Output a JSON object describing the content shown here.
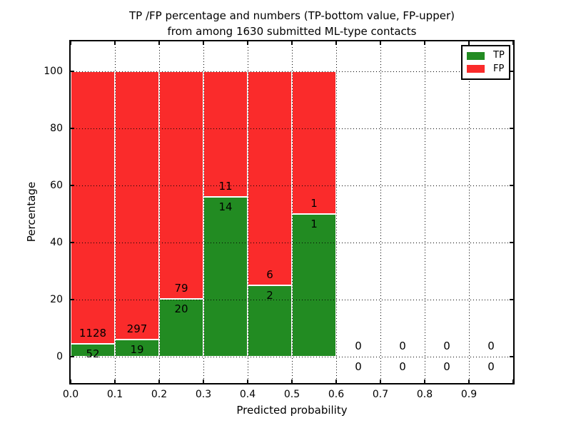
{
  "figure": {
    "title_line1": "TP /FP percentage and numbers (TP-bottom value, FP-upper)",
    "title_line2": "from among 1630 submitted ML-type contacts",
    "background": "#ffffff",
    "spine_color": "#000000"
  },
  "chart_data": {
    "type": "bar",
    "stacked": true,
    "title": "TP /FP percentage and numbers (TP-bottom value, FP-upper)\nfrom among 1630 submitted ML-type contacts",
    "xlabel": "Predicted probability",
    "ylabel": "Percentage",
    "xlim": [
      0.0,
      1.0
    ],
    "ylim": [
      -9.25,
      110.5
    ],
    "grid": "dotted",
    "grid_color": "#000000",
    "xtick_values": [
      0.0,
      0.1,
      0.2,
      0.3,
      0.4,
      0.5,
      0.6,
      0.7,
      0.8,
      0.9
    ],
    "xtick_labels": [
      "0.0",
      "0.1",
      "0.2",
      "0.3",
      "0.4",
      "0.5",
      "0.6",
      "0.7",
      "0.8",
      "0.9"
    ],
    "ytick_values": [
      0,
      20,
      40,
      60,
      80,
      100
    ],
    "ytick_labels": [
      "0",
      "20",
      "40",
      "60",
      "80",
      "100"
    ],
    "total_contacts": 1630,
    "series_colors": {
      "TP": "#228b22",
      "FP": "#fa2b2b"
    },
    "bar_edge_color": "#ffffff",
    "legend": {
      "position": "upper-right",
      "entries": [
        {
          "label": "TP",
          "color": "#228b22"
        },
        {
          "label": "FP",
          "color": "#fa2b2b"
        }
      ]
    },
    "bins": [
      {
        "x0": 0.0,
        "x1": 0.1,
        "tp": 52,
        "fp": 1128,
        "tp_percent": 4.4
      },
      {
        "x0": 0.1,
        "x1": 0.2,
        "tp": 19,
        "fp": 297,
        "tp_percent": 6.0
      },
      {
        "x0": 0.2,
        "x1": 0.3,
        "tp": 20,
        "fp": 79,
        "tp_percent": 20.2
      },
      {
        "x0": 0.3,
        "x1": 0.4,
        "tp": 14,
        "fp": 11,
        "tp_percent": 56.0
      },
      {
        "x0": 0.4,
        "x1": 0.5,
        "tp": 2,
        "fp": 6,
        "tp_percent": 25.0
      },
      {
        "x0": 0.5,
        "x1": 0.6,
        "tp": 1,
        "fp": 1,
        "tp_percent": 50.0
      },
      {
        "x0": 0.6,
        "x1": 0.7,
        "tp": 0,
        "fp": 0,
        "tp_percent": null
      },
      {
        "x0": 0.7,
        "x1": 0.8,
        "tp": 0,
        "fp": 0,
        "tp_percent": null
      },
      {
        "x0": 0.8,
        "x1": 0.9,
        "tp": 0,
        "fp": 0,
        "tp_percent": null
      },
      {
        "x0": 0.9,
        "x1": 1.0,
        "tp": 0,
        "fp": 0,
        "tp_percent": null
      }
    ]
  }
}
